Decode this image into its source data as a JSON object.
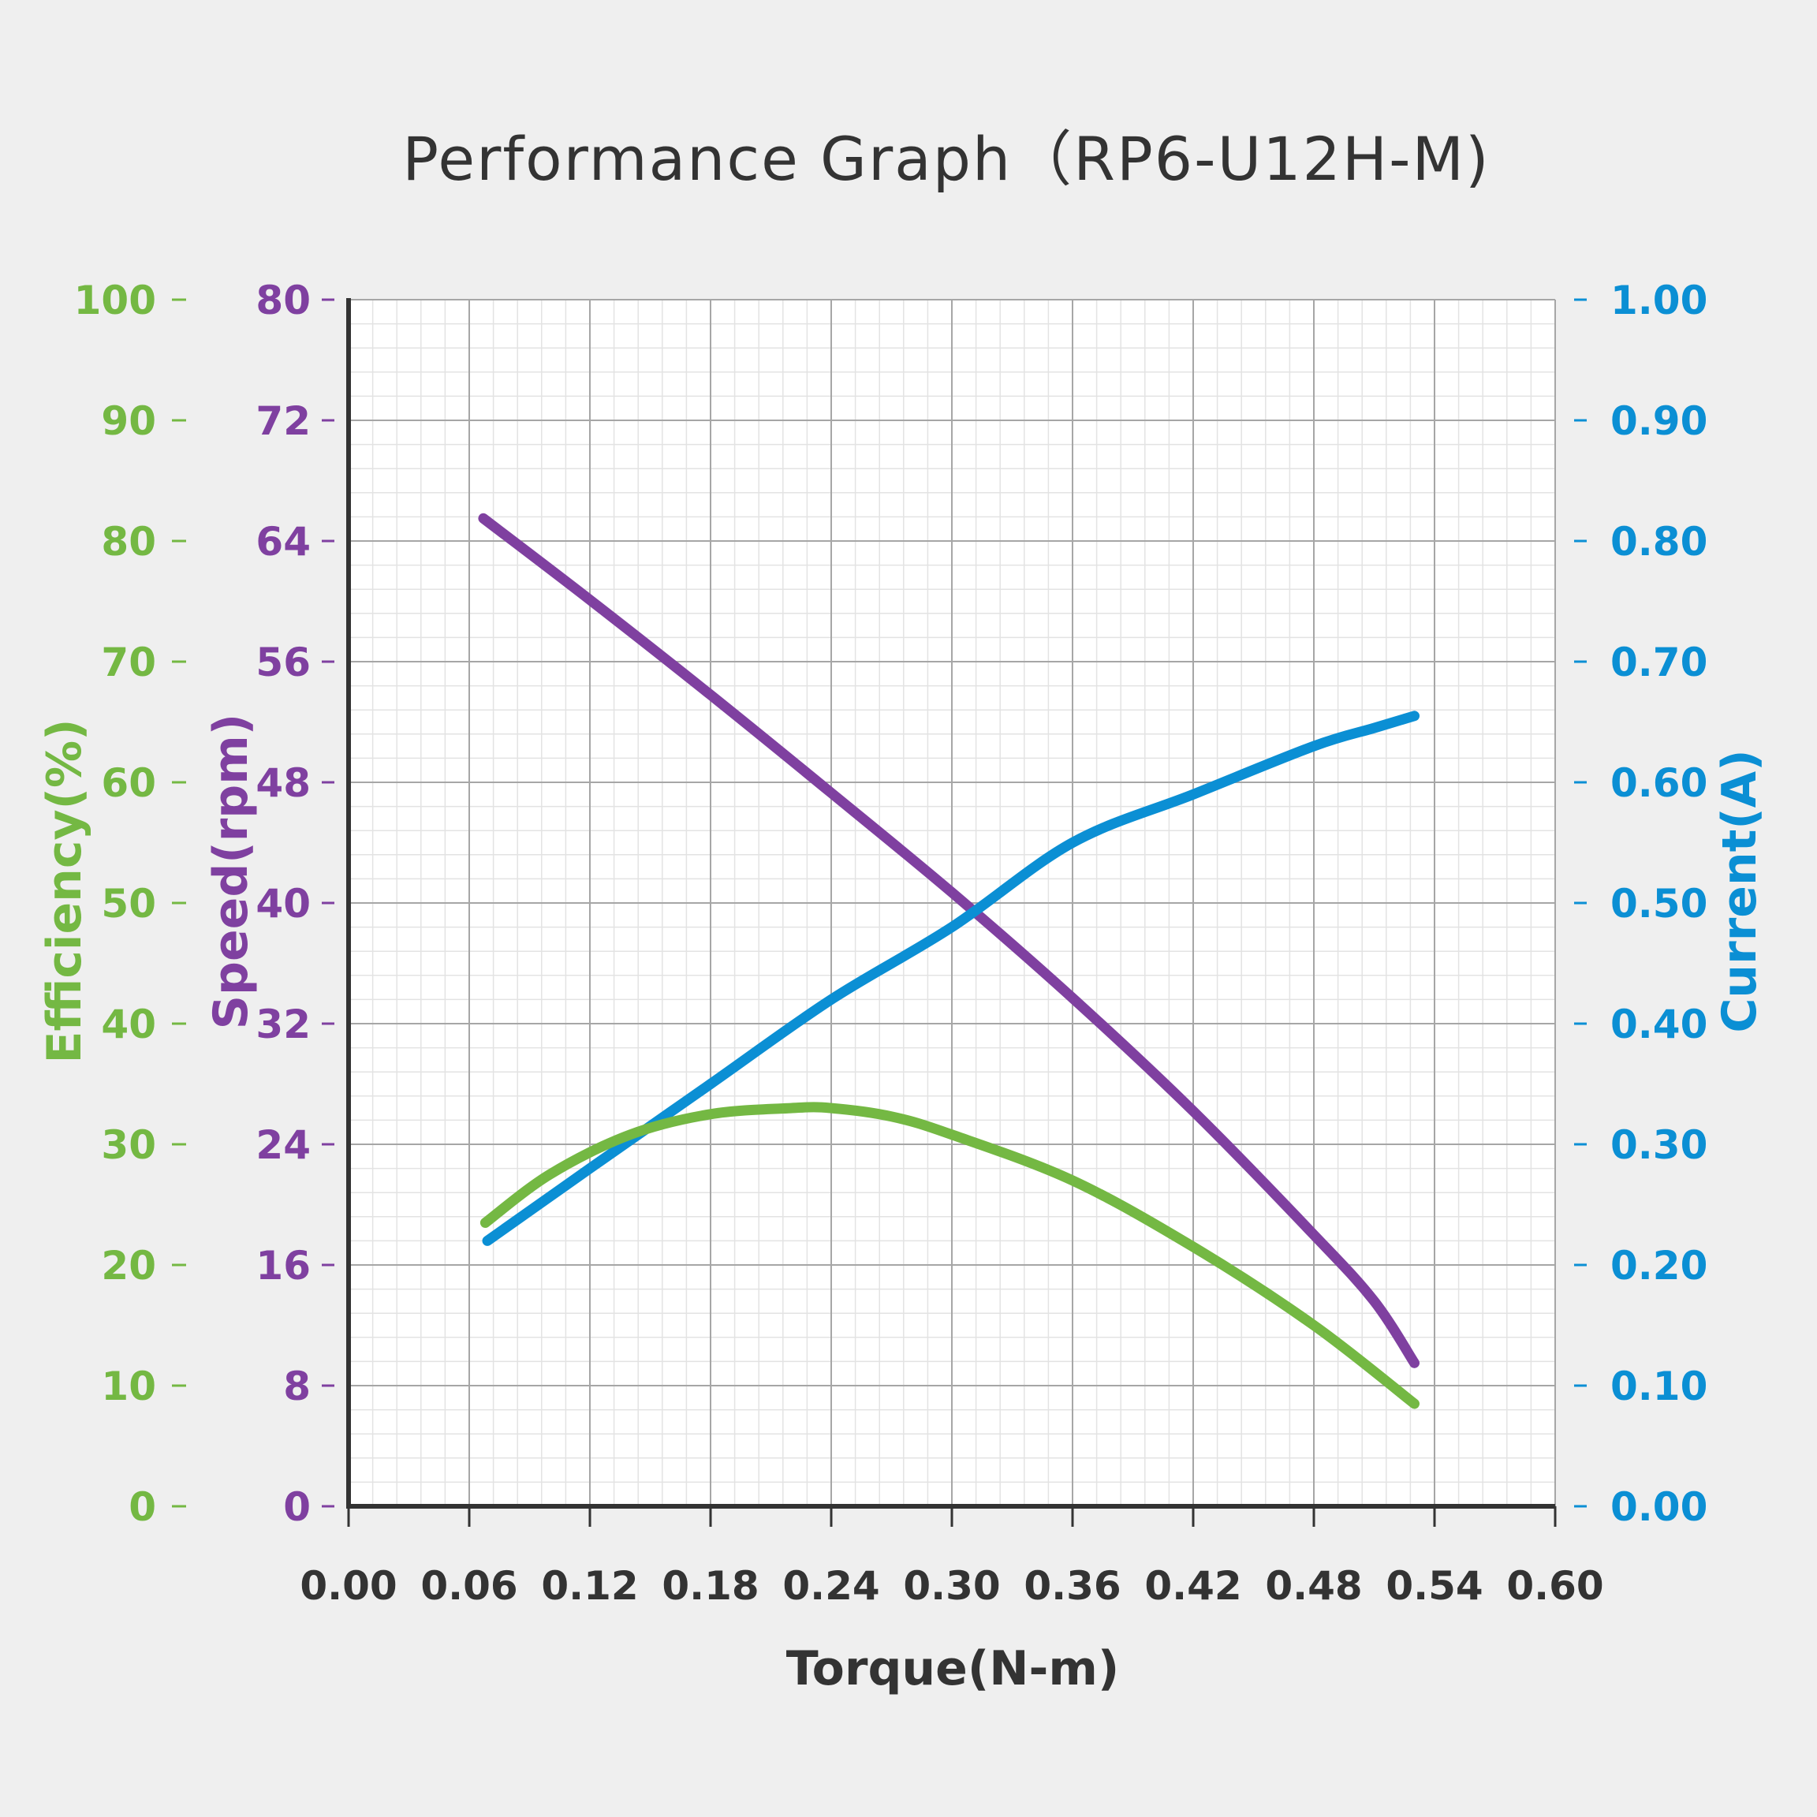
{
  "chart_data": {
    "type": "line",
    "title": "Performance Graph（RP6-U12H-M)",
    "xlabel": "Torque(N-m)",
    "x_axis": {
      "label": "Torque(N-m)",
      "range": [
        0,
        0.6
      ],
      "ticks": [
        "0.00",
        "0.06",
        "0.12",
        "0.18",
        "0.24",
        "0.30",
        "0.36",
        "0.42",
        "0.48",
        "0.54",
        "0.60"
      ],
      "color": "#333333"
    },
    "y_axes": {
      "efficiency": {
        "label": "Efficiency(%)",
        "range": [
          0,
          100
        ],
        "ticks": [
          "0",
          "10",
          "20",
          "30",
          "40",
          "50",
          "60",
          "70",
          "80",
          "90",
          "100"
        ],
        "color": "#74b843"
      },
      "speed": {
        "label": "Speed(rpm)",
        "range": [
          0,
          80
        ],
        "ticks": [
          "0",
          "8",
          "16",
          "24",
          "32",
          "40",
          "48",
          "56",
          "64",
          "72",
          "80"
        ],
        "color": "#7f40a0"
      },
      "current": {
        "label": "Current(A)",
        "range": [
          0,
          1.0
        ],
        "ticks": [
          "0.00",
          "0.10",
          "0.20",
          "0.30",
          "0.40",
          "0.50",
          "0.60",
          "0.70",
          "0.80",
          "0.90",
          "1.00"
        ],
        "color": "#0b8fd4"
      }
    },
    "grid": true,
    "series": [
      {
        "name": "Speed",
        "axis": "speed",
        "color": "#7f40a0",
        "x": [
          0.067,
          0.12,
          0.18,
          0.24,
          0.3,
          0.36,
          0.42,
          0.48,
          0.51,
          0.53
        ],
        "y": [
          65.5,
          60.1,
          53.8,
          47.3,
          40.7,
          33.7,
          26.2,
          18.0,
          13.6,
          9.5
        ]
      },
      {
        "name": "Current",
        "axis": "current",
        "color": "#0b8fd4",
        "x": [
          0.069,
          0.12,
          0.18,
          0.24,
          0.3,
          0.36,
          0.42,
          0.48,
          0.51,
          0.53
        ],
        "y": [
          0.22,
          0.28,
          0.35,
          0.42,
          0.48,
          0.55,
          0.59,
          0.63,
          0.645,
          0.655
        ]
      },
      {
        "name": "Efficiency",
        "axis": "efficiency",
        "color": "#74b843",
        "x": [
          0.068,
          0.1,
          0.14,
          0.18,
          0.22,
          0.24,
          0.27,
          0.3,
          0.36,
          0.42,
          0.48,
          0.53
        ],
        "y": [
          23.5,
          27.5,
          30.8,
          32.5,
          33.0,
          33.0,
          32.3,
          30.8,
          27.0,
          21.5,
          15.0,
          8.5
        ]
      }
    ]
  }
}
